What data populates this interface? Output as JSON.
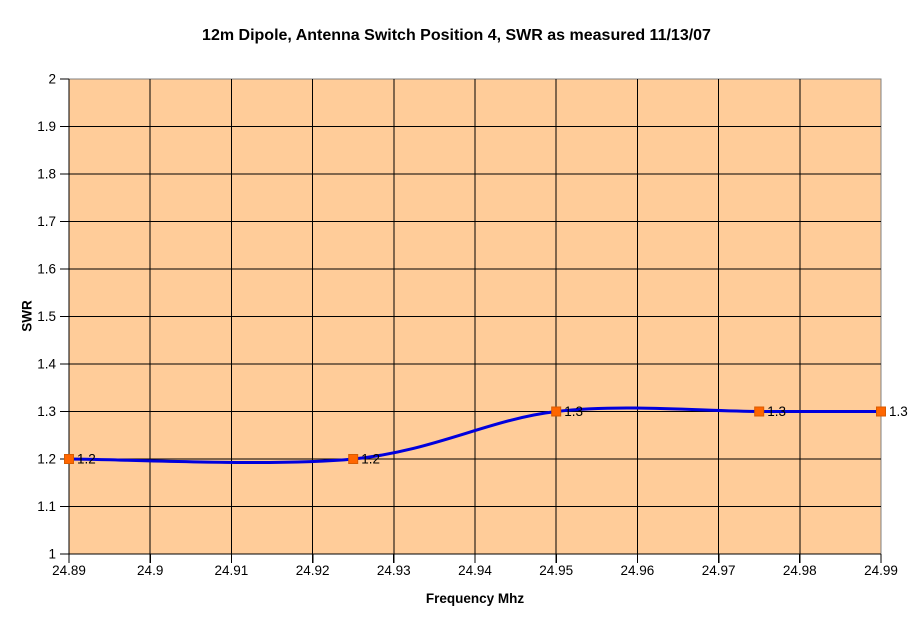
{
  "chart_data": {
    "type": "line",
    "title": "12m Dipole, Antenna Switch Position 4, SWR as measured 11/13/07",
    "xlabel": "Frequency Mhz",
    "ylabel": "SWR",
    "x": [
      24.89,
      24.925,
      24.95,
      24.975,
      24.99
    ],
    "y": [
      1.2,
      1.2,
      1.3,
      1.3,
      1.3
    ],
    "point_labels": [
      "1.2",
      "1.2",
      "1.3",
      "1.3",
      "1.3"
    ],
    "xlim": [
      24.89,
      24.99
    ],
    "ylim": [
      1,
      2
    ],
    "xtick_step": 0.01,
    "ytick_step": 0.1,
    "x_tick_labels": [
      "24.89",
      "24.9",
      "24.91",
      "24.92",
      "24.93",
      "24.94",
      "24.95",
      "24.96",
      "24.97",
      "24.98",
      "24.99"
    ],
    "y_tick_labels": [
      "1",
      "1.1",
      "1.2",
      "1.3",
      "1.4",
      "1.5",
      "1.6",
      "1.7",
      "1.8",
      "1.9",
      "2"
    ],
    "smoothed": true,
    "grid": true,
    "legend": false,
    "colors": {
      "background": "#FFFFFF",
      "plot_bg": "#FFCC99",
      "line": "#0000DD",
      "marker": "#FF6600",
      "marker_border": "#D95B00",
      "gridline": "#000000",
      "plot_border": "#808080",
      "axis": "#000000",
      "text": "#000000"
    }
  }
}
